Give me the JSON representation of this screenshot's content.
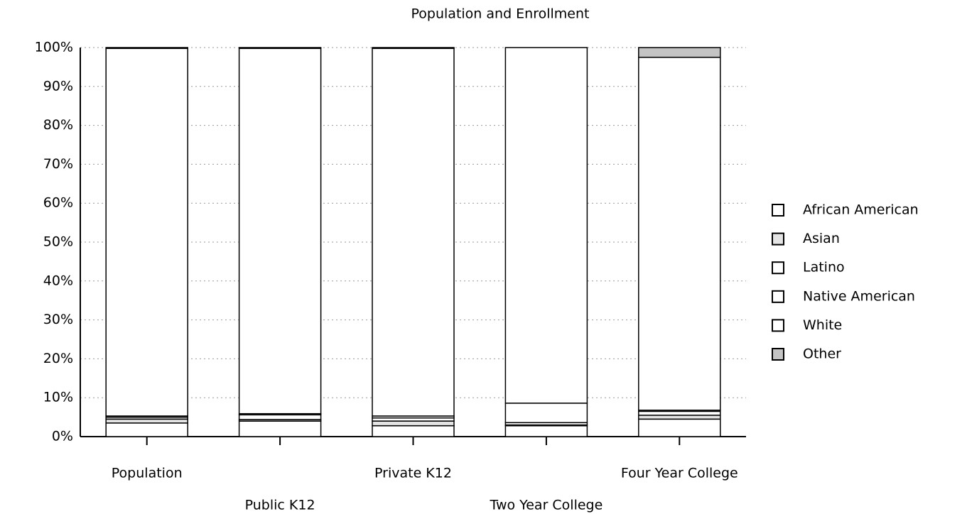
{
  "chart_data": {
    "type": "stacked_bar",
    "title": "Population and Enrollment",
    "categories": [
      "Population",
      "Public K12",
      "Private K12",
      "Two Year College",
      "Four Year College"
    ],
    "series": [
      {
        "name": "African American",
        "color": "#ffffff",
        "values": [
          3.5,
          4,
          2.8,
          2.8,
          4.5
        ]
      },
      {
        "name": "Asian",
        "color": "#e4e4e4",
        "values": [
          1,
          0.4,
          1.2,
          0.2,
          1
        ]
      },
      {
        "name": "Latino",
        "color": "#ffffff",
        "values": [
          0.5,
          1.2,
          0.8,
          0.6,
          1
        ]
      },
      {
        "name": "Native American",
        "color": "#ffffff",
        "values": [
          0.3,
          0.3,
          0.5,
          5,
          0.3
        ]
      },
      {
        "name": "White",
        "color": "#ffffff",
        "values": [
          94.5,
          93.9,
          94.5,
          91.4,
          90.7
        ]
      },
      {
        "name": "Other",
        "color": "#c4c4c4",
        "values": [
          0.2,
          0.2,
          0.2,
          0,
          2.5
        ]
      }
    ],
    "ylim": [
      0,
      100
    ],
    "yticks": [
      {
        "value": 0,
        "label": "0%"
      },
      {
        "value": 10,
        "label": "10%"
      },
      {
        "value": 20,
        "label": "20%"
      },
      {
        "value": 30,
        "label": "30%"
      },
      {
        "value": 40,
        "label": "40%"
      },
      {
        "value": 50,
        "label": "50%"
      },
      {
        "value": 60,
        "label": "60%"
      },
      {
        "value": 70,
        "label": "70%"
      },
      {
        "value": 80,
        "label": "80%"
      },
      {
        "value": 90,
        "label": "90%"
      },
      {
        "value": 100,
        "label": "100%"
      }
    ],
    "grid": true,
    "legend": "right"
  }
}
